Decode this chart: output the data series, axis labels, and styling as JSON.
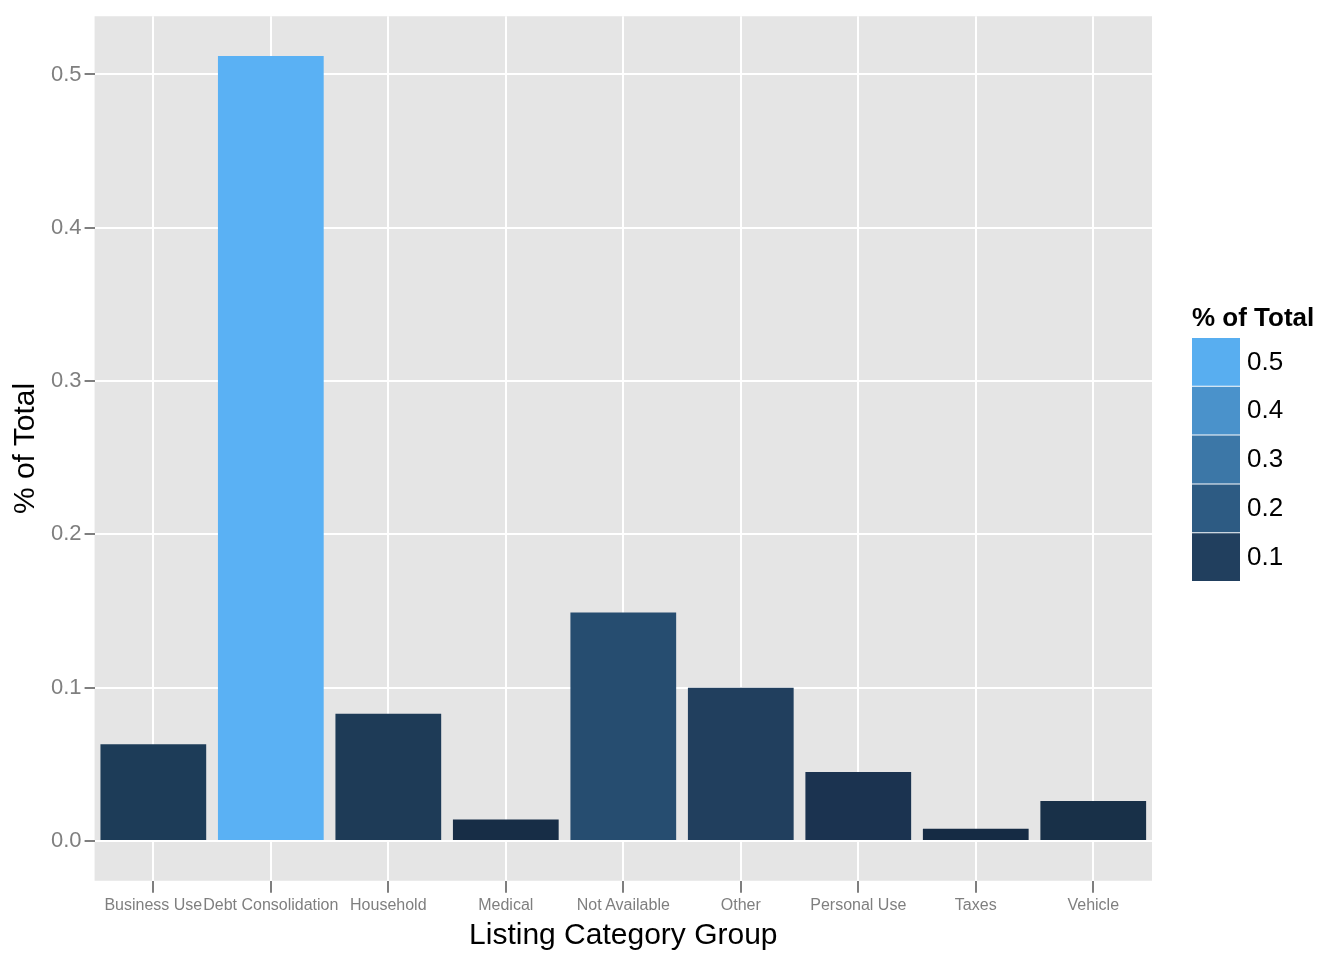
{
  "chart_data": {
    "type": "bar",
    "xlabel": "Listing Category Group",
    "ylabel": "% of Total",
    "clabel": "% of Total",
    "categories": [
      "Business Use",
      "Debt Consolidation",
      "Household",
      "Medical",
      "Not Available",
      "Other",
      "Personal Use",
      "Taxes",
      "Vehicle"
    ],
    "values": [
      0.063,
      0.512,
      0.083,
      0.014,
      0.149,
      0.1,
      0.045,
      0.008,
      0.026
    ],
    "colors": [
      "#1d3c58",
      "#5ab1f4",
      "#1e3b57",
      "#172d46",
      "#264d70",
      "#213f5e",
      "#1b3350",
      "#152b44",
      "#183048"
    ],
    "ylim": [
      -0.026,
      0.538
    ],
    "yticks": [
      {
        "value": 0,
        "label": "0.0"
      },
      0.1,
      0.2,
      0.3,
      0.4,
      0.5
    ],
    "clim": [
      0.05,
      0.55
    ],
    "cticks": [
      0.1,
      0.2,
      0.3,
      0.4,
      0.5
    ],
    "grid": true
  }
}
